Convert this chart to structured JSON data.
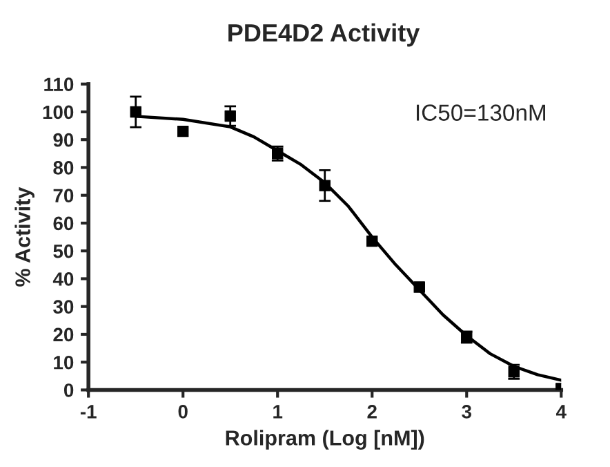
{
  "chart_data": {
    "type": "scatter",
    "title": "PDE4D2 Activity",
    "xlabel": "Rolipram (Log [nM])",
    "ylabel": "% Activity",
    "annotations": [
      "IC50=130nM"
    ],
    "x": [
      -0.5,
      0,
      0.5,
      1,
      1.5,
      2,
      2.5,
      3,
      3.5,
      4
    ],
    "series": [
      {
        "color": "#000000",
        "marker": "square",
        "values": [
          100,
          93,
          98.5,
          85,
          73.5,
          53.5,
          37,
          19,
          6.5,
          0.5
        ],
        "errors": [
          5.5,
          null,
          3.5,
          2.5,
          5.5,
          null,
          null,
          2,
          2.5,
          null
        ]
      },
      {
        "type": "line",
        "color": "#000000",
        "line_style": "solid",
        "marker": "none",
        "x": [
          -0.5,
          0,
          0.5,
          0.75,
          1,
          1.25,
          1.5,
          1.75,
          2,
          2.25,
          2.5,
          2.75,
          3,
          3.25,
          3.5,
          3.75,
          4
        ],
        "values": [
          98.4,
          97.3,
          94.6,
          91,
          86,
          81,
          74.5,
          66,
          55,
          45,
          36,
          27,
          19.5,
          13,
          8.5,
          5.5,
          3.5
        ]
      }
    ],
    "xlim": [
      -1,
      4
    ],
    "xticks": [
      -1,
      0,
      1,
      2,
      3,
      4
    ],
    "ylim": [
      0,
      110
    ],
    "yticks": [
      0,
      10,
      20,
      30,
      40,
      50,
      60,
      70,
      80,
      90,
      100,
      110
    ],
    "grid": false,
    "legend": false
  }
}
